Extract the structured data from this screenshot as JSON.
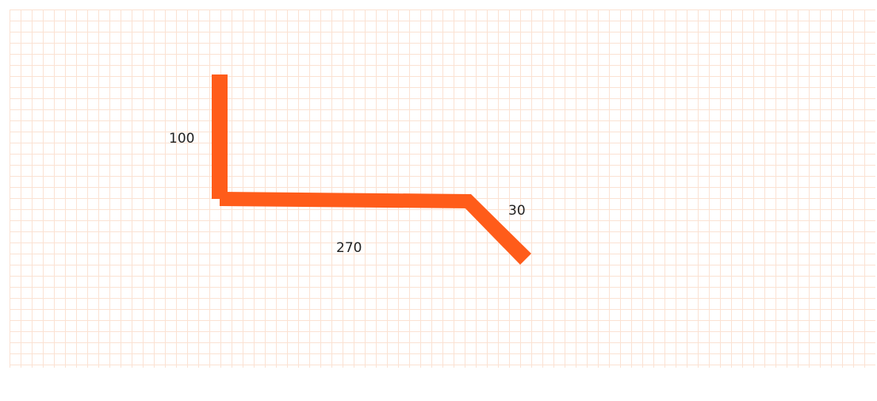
{
  "diagram": {
    "stroke_color": "#ff5c1a",
    "grid_color": "#fbe2d3",
    "segments": [
      {
        "label": "100"
      },
      {
        "label": "270"
      },
      {
        "label": "30"
      }
    ]
  }
}
